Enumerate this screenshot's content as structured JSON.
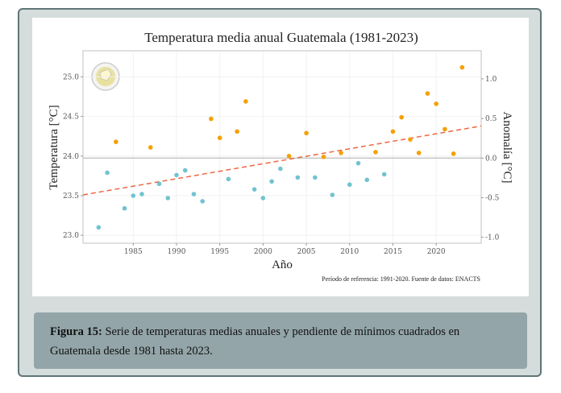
{
  "chart_data": {
    "type": "scatter",
    "title": "Temperatura media anual Guatemala (1981-2023)",
    "xlabel": "Año",
    "ylabel": "Temperatura [°C]",
    "ylabel_right": "Anomalía [°C]",
    "xlim": [
      1979.2,
      2025.2
    ],
    "ylim": [
      22.9,
      25.33
    ],
    "x_ticks": [
      1985,
      1990,
      1995,
      2000,
      2005,
      2010,
      2015,
      2020
    ],
    "y_ticks": [
      "23.0",
      "23.5",
      "24.0",
      "24.5",
      "25.0"
    ],
    "y_right_ticks": [
      "-1.0",
      "-0.5",
      "0.0",
      "0.5",
      "1.0"
    ],
    "reference_mean": 23.975,
    "grid": true,
    "colors": {
      "below": "#72c3d0",
      "above": "#f5a000",
      "trend": "#ee6644",
      "baseline": "#bbbbbb"
    },
    "years": [
      1981,
      1982,
      1983,
      1984,
      1985,
      1986,
      1987,
      1988,
      1989,
      1990,
      1991,
      1992,
      1993,
      1994,
      1995,
      1996,
      1997,
      1998,
      1999,
      2000,
      2001,
      2002,
      2003,
      2004,
      2005,
      2006,
      2007,
      2008,
      2009,
      2010,
      2011,
      2012,
      2013,
      2014,
      2015,
      2016,
      2017,
      2018,
      2019,
      2020,
      2021,
      2022,
      2023
    ],
    "values": [
      23.1,
      23.79,
      24.18,
      23.34,
      23.5,
      23.52,
      24.11,
      23.65,
      23.47,
      23.76,
      23.82,
      23.52,
      23.43,
      24.47,
      24.23,
      23.71,
      24.31,
      24.69,
      23.58,
      23.47,
      23.68,
      23.84,
      24.0,
      23.73,
      24.29,
      23.73,
      23.99,
      23.51,
      24.04,
      23.64,
      23.91,
      23.7,
      24.05,
      23.77,
      24.31,
      24.49,
      24.21,
      24.04,
      24.79,
      24.66,
      24.34,
      24.03,
      25.12
    ],
    "trend": {
      "start": [
        1979.2,
        23.51
      ],
      "end": [
        2025.2,
        24.38
      ]
    },
    "footnote": "Período de referencia: 1991-2020. Fuente de datos: ENACTS"
  },
  "caption": {
    "label": "Figura 15:",
    "text": " Serie de temperaturas medias anuales y pendiente de mínimos cuadrados en Guatemala desde 1981 hasta 2023."
  },
  "logo": {
    "name": "institution-seal"
  }
}
